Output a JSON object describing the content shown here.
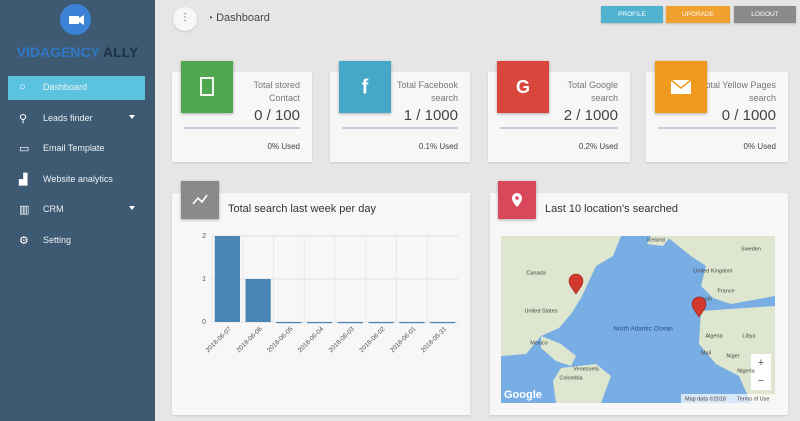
{
  "sidebar": {
    "brand": "VIDAGENCY",
    "brand_accent": "ALLY",
    "menu": [
      {
        "label": "Dashboard",
        "active": true
      },
      {
        "label": "Leads finder",
        "submenu": true
      },
      {
        "label": "Email Template"
      },
      {
        "label": "Website analytics"
      },
      {
        "label": "CRM",
        "submenu": true
      },
      {
        "label": "Setting"
      }
    ]
  },
  "header": {
    "title": "Dashboard",
    "buttons": [
      {
        "label": "PROFILE",
        "color": "#4fb3cf"
      },
      {
        "label": "UPGRADE",
        "color": "#f0a02e"
      },
      {
        "label": "LOGOUT",
        "color": "#8a8a8a"
      }
    ]
  },
  "stats": [
    {
      "label": "Total stored Contact",
      "value": "0 / 100",
      "used": "0% Used",
      "color": "#4fa84f"
    },
    {
      "label": "Total Facebook search",
      "value": "1 / 1000",
      "used": "0.1% Used",
      "color": "#45a8c6"
    },
    {
      "label": "Total Google search",
      "value": "2 / 1000",
      "used": "0.2% Used",
      "color": "#d9463b"
    },
    {
      "label": "Total Yellow Pages search",
      "value": "0 / 1000",
      "used": "0% Used",
      "color": "#f0991f"
    }
  ],
  "chart_panel": {
    "title": "Total search last week per day"
  },
  "chart_data": {
    "type": "bar",
    "categories": [
      "2018-06-07",
      "2018-06-06",
      "2018-06-05",
      "2018-06-04",
      "2018-06-03",
      "2018-06-02",
      "2018-06-01",
      "2018-05-31"
    ],
    "values": [
      2,
      1,
      0,
      0,
      0,
      0,
      0,
      0
    ],
    "ylim": [
      0,
      2
    ],
    "yticks": [
      0,
      1,
      2
    ],
    "grid": true,
    "color": "#4a84b5"
  },
  "map_panel": {
    "title": "Last 10 location's searched",
    "labels": [
      "Canada",
      "United States",
      "Mexico",
      "North Atlantic Ocean",
      "Venezuela",
      "Colombia",
      "Iceland",
      "Sweden",
      "United Kingdom",
      "France",
      "Spain",
      "Algeria",
      "Libya",
      "Mali",
      "Niger",
      "Nigeria"
    ],
    "logo": "Google",
    "attribution": "Map data ©2018",
    "terms": "Terms of Use",
    "zoom": [
      "+",
      "−"
    ]
  }
}
